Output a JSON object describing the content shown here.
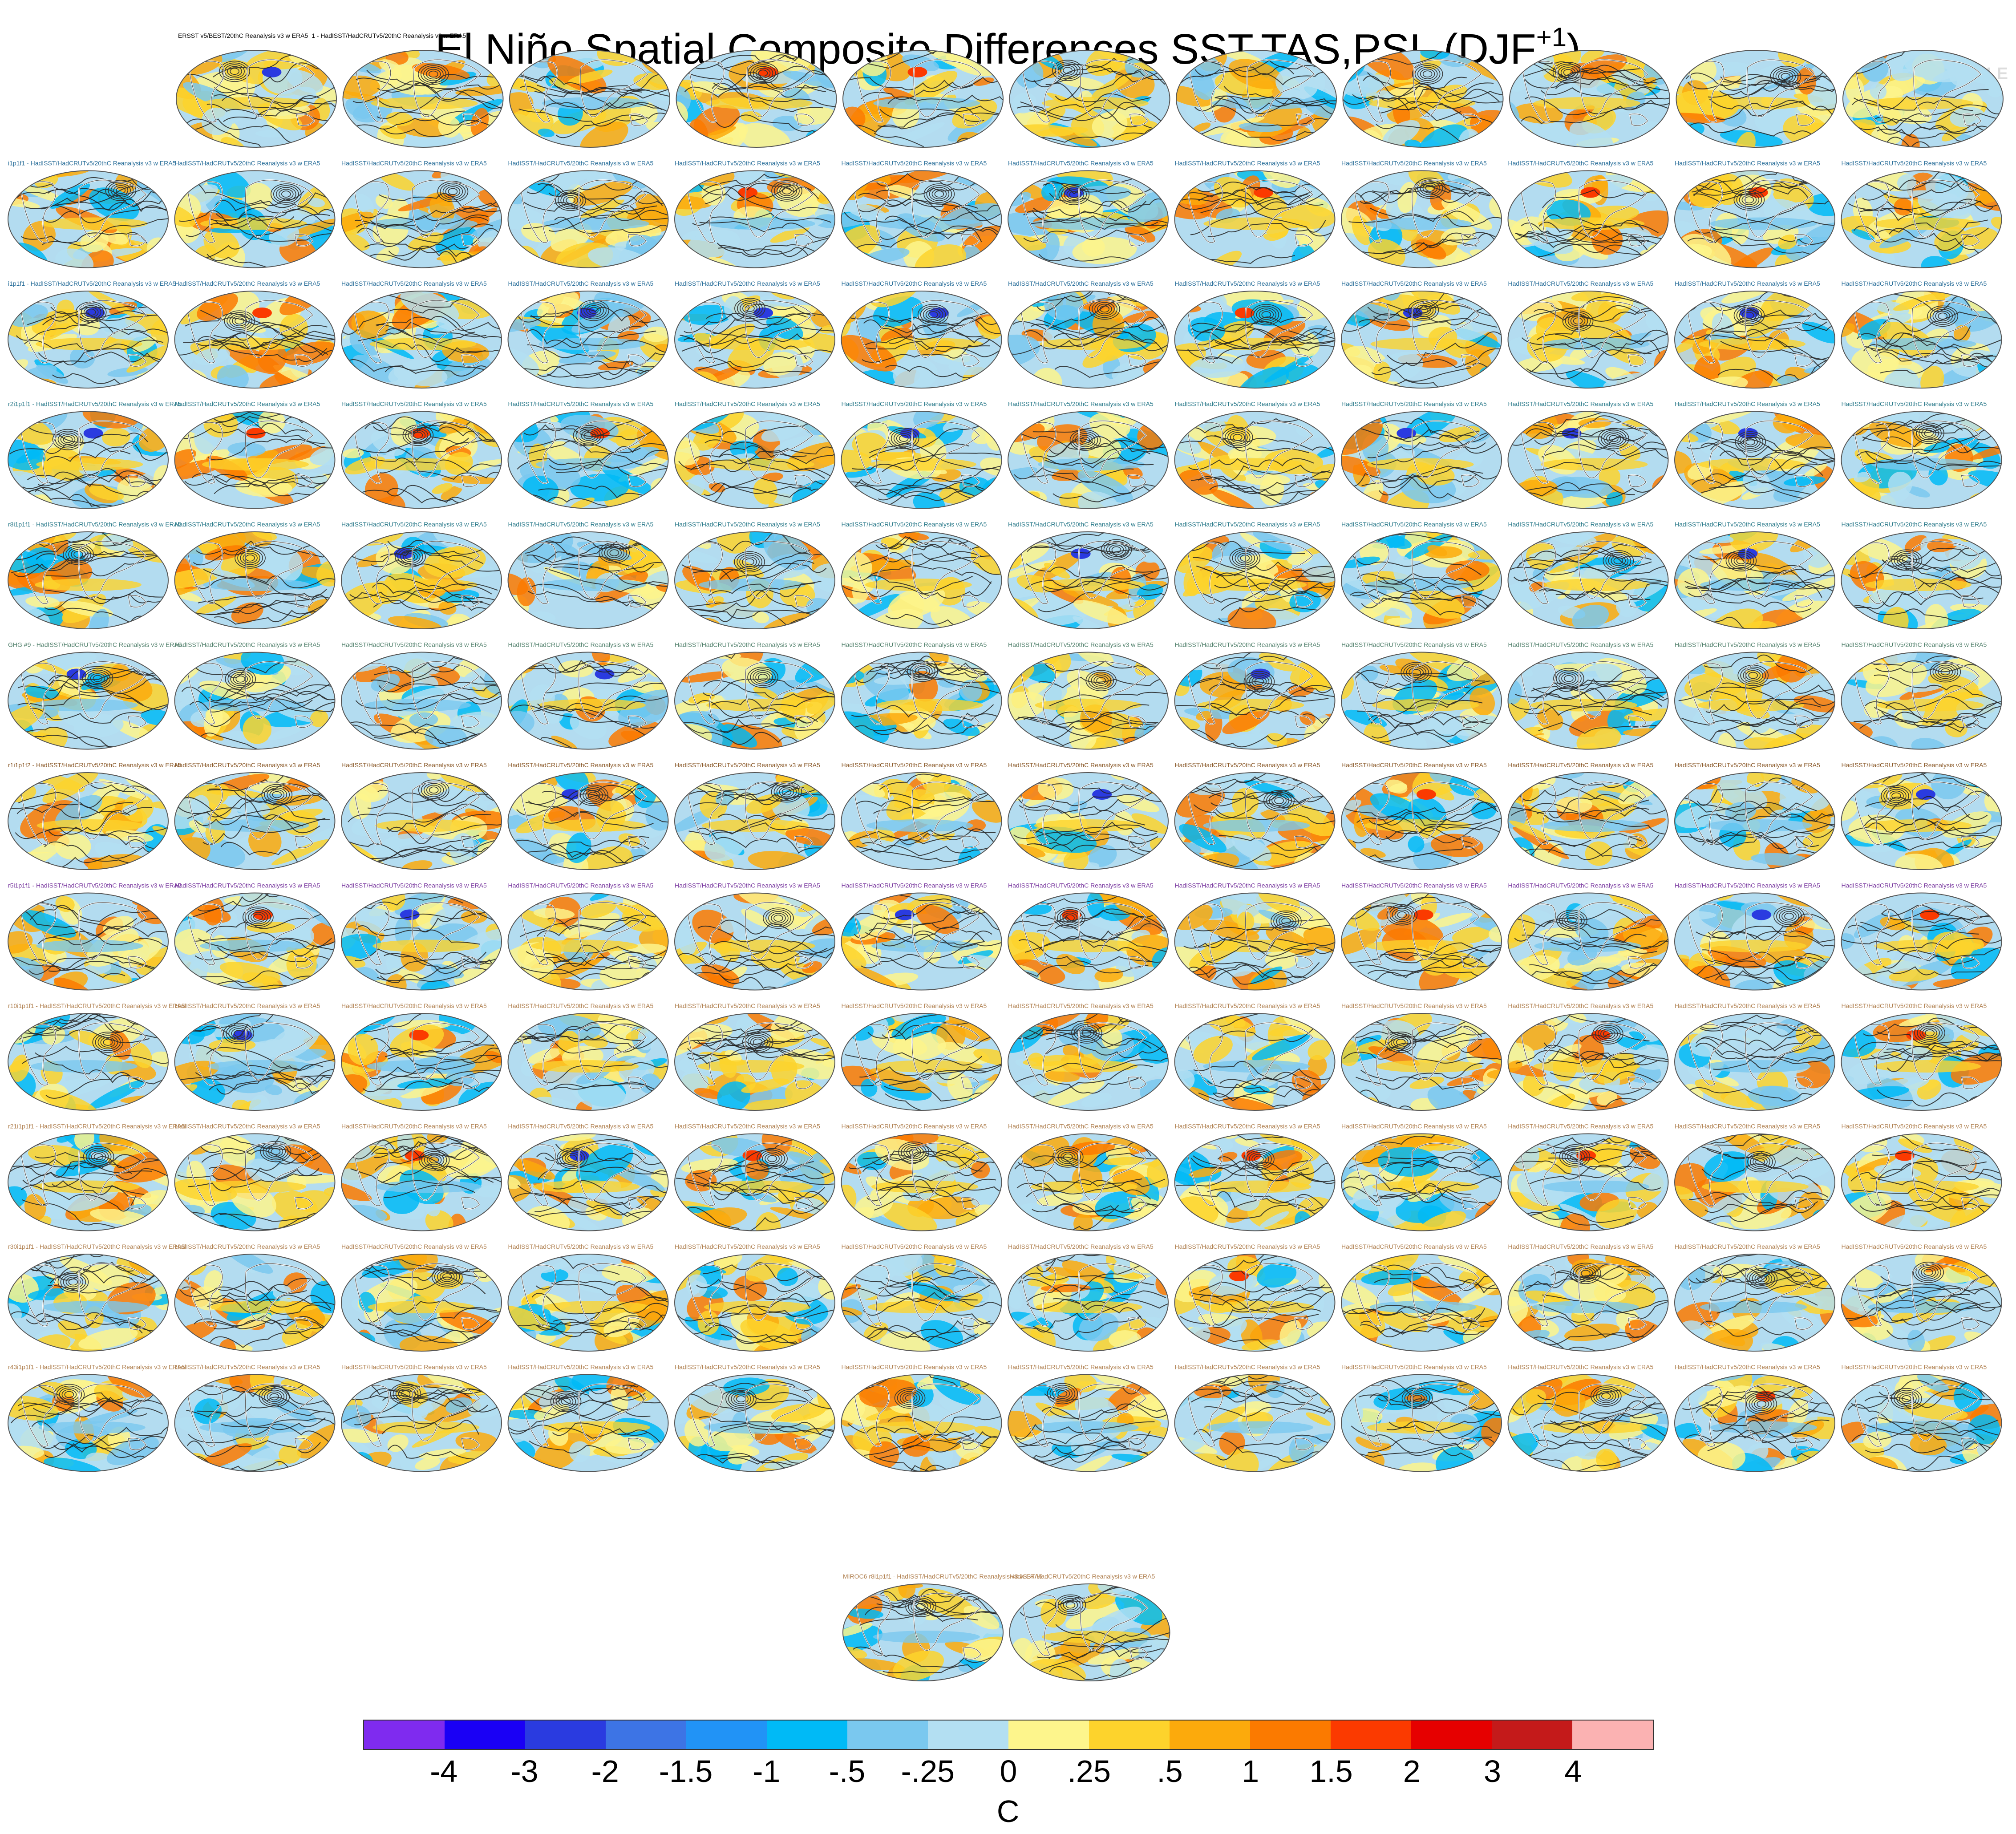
{
  "title_main": "El Niño Spatial Composite Differences SST,TAS,PSL (DJF",
  "title_sup": "+1",
  "title_close": ")",
  "watermark": "© CVDP-LE",
  "first_panel_label": "ERSST v5/BEST/20thC Reanalysis v3 w ERA5_1 - HadISST/HadCRUTv5/20thC Reanalysis v3 w ERA5",
  "repeat_panel_label": "HadISST/HadCRUTv5/20thC Reanalysis v3 w ERA5",
  "row_prefixes": [
    "",
    "i1p1f1",
    "i1p1f1",
    "r2i1p1f1",
    "r8i1p1f1",
    "GHG #9",
    "r1i1p1f2",
    "r5i1p1f1",
    "r10i1p1f1",
    "r21i1p1f1",
    "r30i1p1f1",
    "r43i1p1f1",
    "MIROC6 r8i1p1f1"
  ],
  "row_counts": [
    11,
    12,
    12,
    12,
    12,
    12,
    12,
    12,
    12,
    12,
    12,
    12,
    2
  ],
  "label_colors": [
    "#000000",
    "#2a6f9a",
    "#2a6f9a",
    "#2a7a8a",
    "#2a7a8a",
    "#4f7f6a",
    "#8a5a2a",
    "#7a3aa0",
    "#b08050",
    "#b08050",
    "#b08050",
    "#b08050",
    "#b08050"
  ],
  "colors": {
    "map_bg": "#b3dcf0",
    "land_outline": "#555555",
    "contour": "#222222"
  },
  "chart_data": {
    "type": "heatmap",
    "description_panels": "composite difference maps (SST/TAS shading, PSL contours) for observations and model ensemble members",
    "colorbar": {
      "colors": [
        "#7f2bef",
        "#1a00f5",
        "#2a3be0",
        "#3d74e5",
        "#2193f6",
        "#00baf6",
        "#7ac8ef",
        "#b3dff2",
        "#fdf58c",
        "#fdd32c",
        "#fcaa0c",
        "#fb7a00",
        "#fb3a00",
        "#e60000",
        "#c41a1a",
        "#fbb2b2"
      ],
      "tick_labels": [
        "-4",
        "-3",
        "-2",
        "-1.5",
        "-1",
        "-.5",
        "-.25",
        "0",
        ".25",
        ".5",
        "1",
        "1.5",
        "2",
        "3",
        "4"
      ],
      "unit": "C"
    }
  }
}
